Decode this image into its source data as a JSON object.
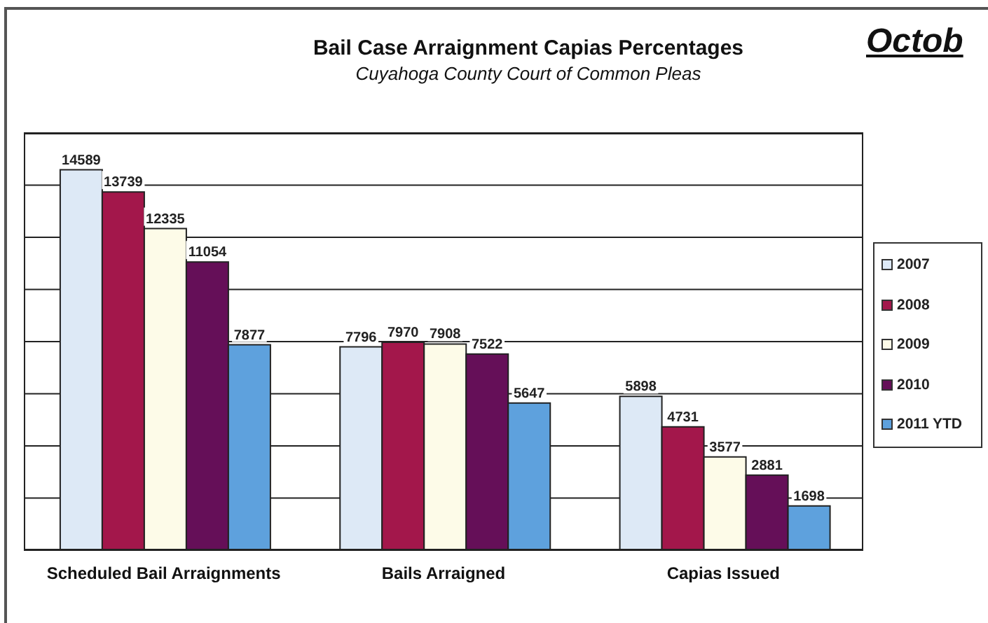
{
  "chart_data": {
    "type": "bar",
    "title": "Bail Case Arraignment Capias Percentages",
    "subtitle": "Cuyahoga County Court of Common Pleas",
    "annotations": [
      "Octob"
    ],
    "categories": [
      "Scheduled Bail Arraignments",
      "Bails Arraigned",
      "Capias Issued"
    ],
    "series": [
      {
        "name": "2007",
        "color": "#dde9f6",
        "values": [
          14589,
          7796,
          5898
        ]
      },
      {
        "name": "2008",
        "color": "#a3174b",
        "values": [
          13739,
          7970,
          4731
        ]
      },
      {
        "name": "2009",
        "color": "#fdfbe8",
        "values": [
          12335,
          7908,
          3577
        ]
      },
      {
        "name": "2010",
        "color": "#650f58",
        "values": [
          11054,
          7522,
          2881
        ]
      },
      {
        "name": "2011 YTD",
        "color": "#5ea1dd",
        "values": [
          7877,
          5647,
          1698
        ]
      }
    ],
    "ylim": [
      0,
      16000
    ],
    "yticks": [
      {
        "value": 0,
        "label": null
      },
      {
        "value": 2000,
        "label": null
      },
      {
        "value": 4000,
        "label": null
      },
      {
        "value": 6000,
        "label": null
      },
      {
        "value": 8000,
        "label": null
      },
      {
        "value": 10000,
        "label": null
      },
      {
        "value": 12000,
        "label": null
      },
      {
        "value": 14000,
        "label": null
      },
      {
        "value": 16000,
        "label": null
      }
    ],
    "tick_labels": "x",
    "grid": "y",
    "legend": "right",
    "data_labels": true
  }
}
